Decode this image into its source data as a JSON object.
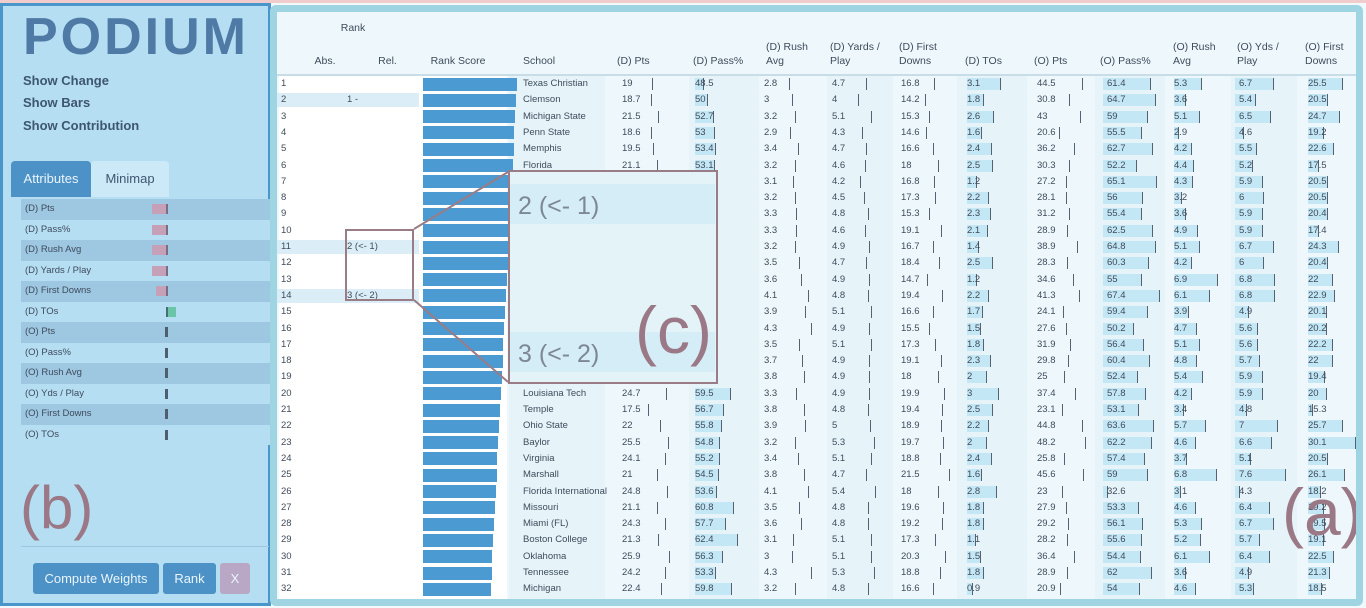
{
  "app": {
    "logo": "PODIUM",
    "menu": [
      "Show Change",
      "Show Bars",
      "Show Contribution"
    ],
    "tabs": [
      "Attributes",
      "Minimap"
    ],
    "buttons": {
      "compute": "Compute Weights",
      "rank": "Rank",
      "close": "X"
    },
    "annotation_a": "(a)",
    "annotation_b": "(b)",
    "annotation_c": "(c)"
  },
  "attributes": [
    {
      "name": "(D) Pts",
      "weight": "neg-medium"
    },
    {
      "name": "(D) Pass%",
      "weight": "neg-medium"
    },
    {
      "name": "(D) Rush Avg",
      "weight": "neg-medium"
    },
    {
      "name": "(D) Yards / Play",
      "weight": "neg-medium"
    },
    {
      "name": "(D) First Downs",
      "weight": "neg-small"
    },
    {
      "name": "(D) TOs",
      "weight": "pos-green"
    },
    {
      "name": "(O) Pts",
      "weight": "zero"
    },
    {
      "name": "(O) Pass%",
      "weight": "zero"
    },
    {
      "name": "(O) Rush Avg",
      "weight": "zero"
    },
    {
      "name": "(O) Yds / Play",
      "weight": "zero"
    },
    {
      "name": "(O) First Downs",
      "weight": "zero"
    },
    {
      "name": "(O) TOs",
      "weight": "zero"
    }
  ],
  "table": {
    "rank_header": "Rank",
    "columns": [
      "Abs.",
      "Rel.",
      "Rank Score",
      "School",
      "(D) Pts",
      "(D) Pass%",
      "(D) Rush Avg",
      "(D) Yards / Play",
      "(D) First Downs",
      "(D) TOs",
      "(O) Pts",
      "(O) Pass%",
      "(O) Rush Avg",
      "(O) Yds / Play",
      "(O) First Downs"
    ],
    "rows": [
      {
        "abs": "1",
        "rel": "",
        "school": "Texas Christian",
        "vals": [
          "19",
          "48.5",
          "2.8",
          "4.7",
          "16.8",
          "3.1",
          "44.5",
          "61.4",
          "5.3",
          "6.7",
          "25.5"
        ]
      },
      {
        "abs": "2",
        "rel": "1 -",
        "school": "Clemson",
        "vals": [
          "18.7",
          "50",
          "3",
          "4",
          "14.2",
          "1.8",
          "30.8",
          "64.7",
          "3.6",
          "5.4",
          "20.5"
        ]
      },
      {
        "abs": "3",
        "rel": "",
        "school": "Michigan State",
        "vals": [
          "21.5",
          "52.7",
          "3.2",
          "5.1",
          "15.3",
          "2.6",
          "43",
          "59",
          "5.1",
          "6.5",
          "24.7"
        ]
      },
      {
        "abs": "4",
        "rel": "",
        "school": "Penn State",
        "vals": [
          "18.6",
          "53",
          "2.9",
          "4.3",
          "14.6",
          "1.6",
          "20.6",
          "55.5",
          "2.9",
          "4.6",
          "19.2"
        ]
      },
      {
        "abs": "5",
        "rel": "",
        "school": "Memphis",
        "vals": [
          "19.5",
          "53.4",
          "3.4",
          "4.7",
          "16.6",
          "2.4",
          "36.2",
          "62.7",
          "4.2",
          "5.5",
          "22.6"
        ]
      },
      {
        "abs": "6",
        "rel": "",
        "school": "Florida",
        "vals": [
          "21.1",
          "53.1",
          "3.2",
          "4.6",
          "18",
          "2.5",
          "30.3",
          "52.2",
          "4.4",
          "5.2",
          "17.5"
        ]
      },
      {
        "abs": "7",
        "rel": "",
        "school": "",
        "vals": [
          "",
          "",
          "3.1",
          "4.2",
          "16.8",
          "1.2",
          "27.2",
          "65.1",
          "4.3",
          "5.9",
          "20.5"
        ]
      },
      {
        "abs": "8",
        "rel": "",
        "school": "",
        "vals": [
          "",
          "",
          "3.2",
          "4.5",
          "17.3",
          "2.2",
          "28.1",
          "56",
          "3.2",
          "6",
          "20.5"
        ]
      },
      {
        "abs": "9",
        "rel": "",
        "school": "",
        "vals": [
          "",
          "",
          "3.3",
          "4.8",
          "15.3",
          "2.3",
          "31.2",
          "55.4",
          "3.6",
          "5.9",
          "20.4"
        ]
      },
      {
        "abs": "10",
        "rel": "",
        "school": "",
        "vals": [
          "",
          "",
          "3.3",
          "4.6",
          "19.1",
          "2.1",
          "28.9",
          "62.5",
          "4.9",
          "5.9",
          "17.4"
        ]
      },
      {
        "abs": "11",
        "rel": "2 (<- 1)",
        "school": "",
        "vals": [
          "",
          "",
          "3.2",
          "4.9",
          "16.7",
          "1.4",
          "38.9",
          "64.8",
          "5.1",
          "6.7",
          "24.3"
        ]
      },
      {
        "abs": "12",
        "rel": "",
        "school": "",
        "vals": [
          "",
          "",
          "3.5",
          "4.7",
          "18.4",
          "2.5",
          "28.3",
          "60.3",
          "4.2",
          "6",
          "20.4"
        ]
      },
      {
        "abs": "13",
        "rel": "",
        "school": "",
        "vals": [
          "",
          "",
          "3.6",
          "4.9",
          "14.7",
          "1.2",
          "34.6",
          "55",
          "6.9",
          "6.8",
          "22"
        ]
      },
      {
        "abs": "14",
        "rel": "3 (<- 2)",
        "school": "",
        "vals": [
          "",
          "",
          "4.1",
          "4.8",
          "19.4",
          "2.2",
          "41.3",
          "67.4",
          "6.1",
          "6.8",
          "22.9"
        ]
      },
      {
        "abs": "15",
        "rel": "",
        "school": "",
        "vals": [
          "",
          "",
          "3.9",
          "5.1",
          "16.6",
          "1.7",
          "24.1",
          "59.4",
          "3.9",
          "4.9",
          "20.1"
        ]
      },
      {
        "abs": "16",
        "rel": "",
        "school": "",
        "vals": [
          "",
          "",
          "4.3",
          "4.9",
          "15.5",
          "1.5",
          "27.6",
          "50.2",
          "4.7",
          "5.6",
          "20.2"
        ]
      },
      {
        "abs": "17",
        "rel": "",
        "school": "",
        "vals": [
          "",
          "",
          "3.5",
          "5.1",
          "17.3",
          "1.8",
          "31.9",
          "56.4",
          "5.1",
          "5.6",
          "22.2"
        ]
      },
      {
        "abs": "18",
        "rel": "",
        "school": "",
        "vals": [
          "",
          "",
          "3.7",
          "4.9",
          "19.1",
          "2.3",
          "29.8",
          "60.4",
          "4.8",
          "5.7",
          "22"
        ]
      },
      {
        "abs": "19",
        "rel": "",
        "school": "",
        "vals": [
          "",
          "",
          "3.8",
          "4.9",
          "18",
          "2",
          "25",
          "52.4",
          "5.4",
          "5.9",
          "19.4"
        ]
      },
      {
        "abs": "20",
        "rel": "",
        "school": "Louisiana Tech",
        "vals": [
          "24.7",
          "59.5",
          "3.3",
          "4.9",
          "19.9",
          "3",
          "37.4",
          "57.8",
          "4.2",
          "5.9",
          "20"
        ]
      },
      {
        "abs": "21",
        "rel": "",
        "school": "Temple",
        "vals": [
          "17.5",
          "56.7",
          "3.8",
          "4.8",
          "19.4",
          "2.5",
          "23.1",
          "53.1",
          "3.4",
          "4.8",
          "15.3"
        ]
      },
      {
        "abs": "22",
        "rel": "",
        "school": "Ohio State",
        "vals": [
          "22",
          "55.8",
          "3.9",
          "5",
          "18.9",
          "2.2",
          "44.8",
          "63.6",
          "5.7",
          "7",
          "25.7"
        ]
      },
      {
        "abs": "23",
        "rel": "",
        "school": "Baylor",
        "vals": [
          "25.5",
          "54.8",
          "3.2",
          "5.3",
          "19.7",
          "2",
          "48.2",
          "62.2",
          "4.6",
          "6.6",
          "30.1"
        ]
      },
      {
        "abs": "24",
        "rel": "",
        "school": "Virginia",
        "vals": [
          "24.1",
          "55.2",
          "3.4",
          "5.1",
          "18.8",
          "2.4",
          "25.8",
          "57.4",
          "3.7",
          "5.1",
          "20.5"
        ]
      },
      {
        "abs": "25",
        "rel": "",
        "school": "Marshall",
        "vals": [
          "21",
          "54.5",
          "3.8",
          "4.7",
          "21.5",
          "1.6",
          "45.6",
          "59",
          "6.8",
          "7.6",
          "26.1"
        ]
      },
      {
        "abs": "26",
        "rel": "",
        "school": "Florida International",
        "vals": [
          "24.8",
          "53.6",
          "4.1",
          "5.4",
          "18",
          "2.8",
          "23",
          "32.6",
          "3.1",
          "4.3",
          "18.2"
        ]
      },
      {
        "abs": "27",
        "rel": "",
        "school": "Missouri",
        "vals": [
          "21.1",
          "60.8",
          "3.5",
          "4.8",
          "19.6",
          "1.8",
          "27.9",
          "53.3",
          "4.6",
          "6.4",
          "19.2"
        ]
      },
      {
        "abs": "28",
        "rel": "",
        "school": "Miami (FL)",
        "vals": [
          "24.3",
          "57.7",
          "3.6",
          "4.8",
          "19.2",
          "1.8",
          "29.2",
          "56.1",
          "5.3",
          "6.7",
          "19.5"
        ]
      },
      {
        "abs": "29",
        "rel": "",
        "school": "Boston College",
        "vals": [
          "21.3",
          "62.4",
          "3.1",
          "5.1",
          "17.3",
          "1.1",
          "28.2",
          "55.6",
          "5.2",
          "5.7",
          "19.1"
        ]
      },
      {
        "abs": "30",
        "rel": "",
        "school": "Oklahoma",
        "vals": [
          "25.9",
          "56.3",
          "3",
          "5.1",
          "20.3",
          "1.5",
          "36.4",
          "54.4",
          "6.1",
          "6.4",
          "22.5"
        ]
      },
      {
        "abs": "31",
        "rel": "",
        "school": "Tennessee",
        "vals": [
          "24.2",
          "53.3",
          "4.3",
          "5.3",
          "18.8",
          "1.8",
          "28.9",
          "62",
          "3.6",
          "4.9",
          "21.3"
        ]
      },
      {
        "abs": "32",
        "rel": "",
        "school": "Michigan",
        "vals": [
          "22.4",
          "59.8",
          "3.2",
          "4.8",
          "16.6",
          "0.9",
          "20.9",
          "54",
          "4.6",
          "5.3",
          "18.5"
        ]
      }
    ]
  },
  "zoom": {
    "line1": "2 (<- 1)",
    "line2": "3 (<- 2)"
  }
}
